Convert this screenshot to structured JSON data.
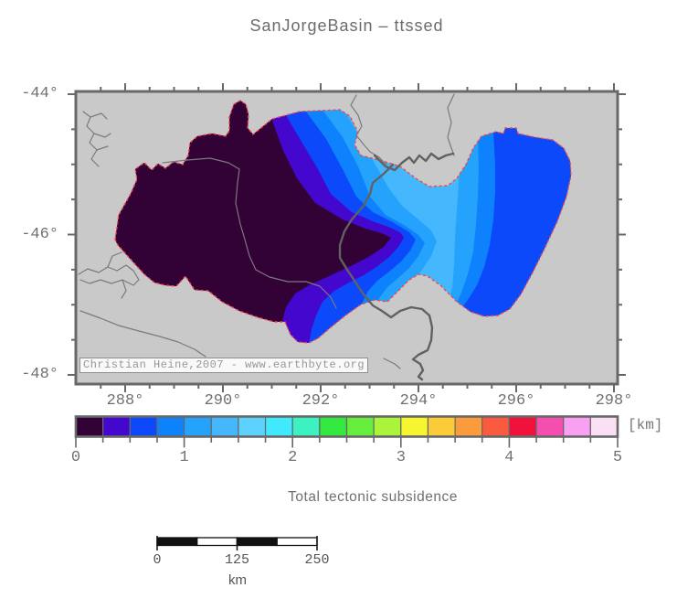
{
  "title": "SanJorgeBasin – ttssed",
  "map": {
    "x_axis": {
      "ticks": [
        {
          "value": 288,
          "label": "288°"
        },
        {
          "value": 290,
          "label": "290°"
        },
        {
          "value": 292,
          "label": "292°"
        },
        {
          "value": 294,
          "label": "294°"
        },
        {
          "value": 296,
          "label": "296°"
        },
        {
          "value": 298,
          "label": "298°"
        }
      ]
    },
    "y_axis": {
      "ticks": [
        {
          "value": -44,
          "label": "-44°"
        },
        {
          "value": -46,
          "label": "-46°"
        },
        {
          "value": -48,
          "label": "-48°"
        }
      ]
    },
    "attribution": "Christian Heine,2007 - www.earthbyte.org"
  },
  "colorbar": {
    "tick_labels": [
      "0",
      "1",
      "2",
      "3",
      "4",
      "5"
    ],
    "unit": "[km]",
    "caption": "Total tectonic subsidence",
    "segments": [
      "#320135",
      "#4407cd",
      "#0b49fb",
      "#0e82fd",
      "#25a3fc",
      "#45b8fd",
      "#5ed2fe",
      "#41e9fd",
      "#3df2c2",
      "#33e83e",
      "#66ee3d",
      "#aaf439",
      "#f6f52f",
      "#fbcb38",
      "#fa9c3c",
      "#fa5a3d",
      "#f0123c",
      "#f44fae",
      "#f9a0f3",
      "#fbdff5"
    ],
    "range_km": [
      0,
      5
    ],
    "step_km": 0.25
  },
  "scalebar": {
    "tick_labels": [
      "0",
      "125",
      "250"
    ],
    "unit": "km"
  },
  "colors": {
    "land": "#c9c9c9",
    "frame": "#686868",
    "basin_outline": "#fb4343",
    "river_thin": "#7a7a7a",
    "river_thick": "#626262",
    "scalebar_dark": "#111111",
    "scalebar_light": "#ffffff"
  }
}
